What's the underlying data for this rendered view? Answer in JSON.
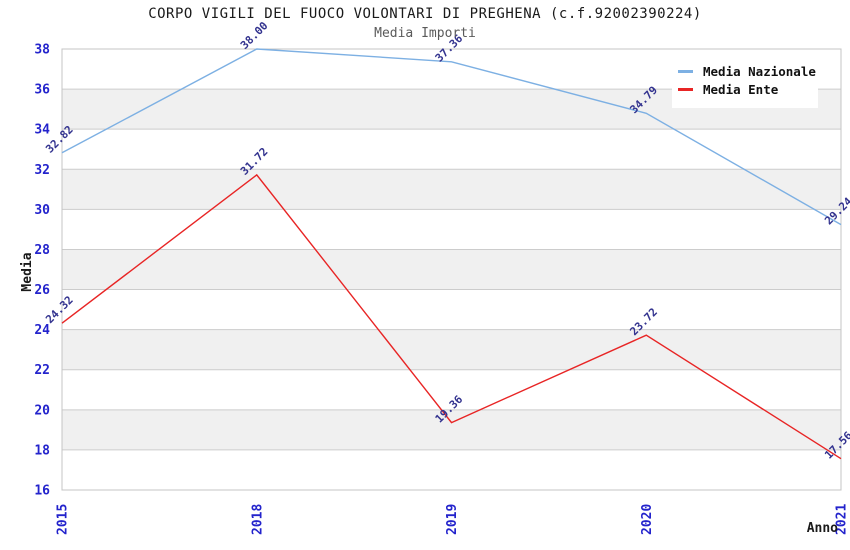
{
  "chart": {
    "title": "CORPO VIGILI DEL FUOCO VOLONTARI DI PREGHENA (c.f.92002390224)",
    "subtitle": "Media Importi"
  },
  "chart_data": {
    "type": "line",
    "title": "CORPO VIGILI DEL FUOCO VOLONTARI DI PREGHENA (c.f.92002390224)",
    "subtitle": "Media Importi",
    "categories": [
      "2015",
      "2018",
      "2019",
      "2020",
      "2021"
    ],
    "series": [
      {
        "name": "Media Nazionale",
        "color": "#7db0e3",
        "values": [
          32.82,
          38.0,
          37.36,
          34.79,
          29.24
        ]
      },
      {
        "name": "Media Ente",
        "color": "#e82525",
        "values": [
          24.32,
          31.72,
          19.36,
          23.72,
          17.56
        ]
      }
    ],
    "point_labels": {
      "Media Nazionale": [
        "32.82",
        "38.00",
        "37.36",
        "34.79",
        "29.24"
      ],
      "Media Ente": [
        "24.32",
        "31.72",
        "19.36",
        "23.72",
        "17.56"
      ]
    },
    "xlabel": "Anno",
    "ylabel": "Media",
    "ylim": [
      16,
      38
    ],
    "ytick_step": 2,
    "grid": true,
    "legend_position": "top-right",
    "band_fill": "alternating horizontal gray/white stripes",
    "colors": {
      "tick_label": "#2323cc",
      "point_label": "#33338f",
      "gridline": "#cccccc",
      "band": "#f0f0f0",
      "plot_border": "#c4c4c4",
      "title_text": "#1a1a1a",
      "subtitle_text": "#5a5a5a"
    }
  }
}
